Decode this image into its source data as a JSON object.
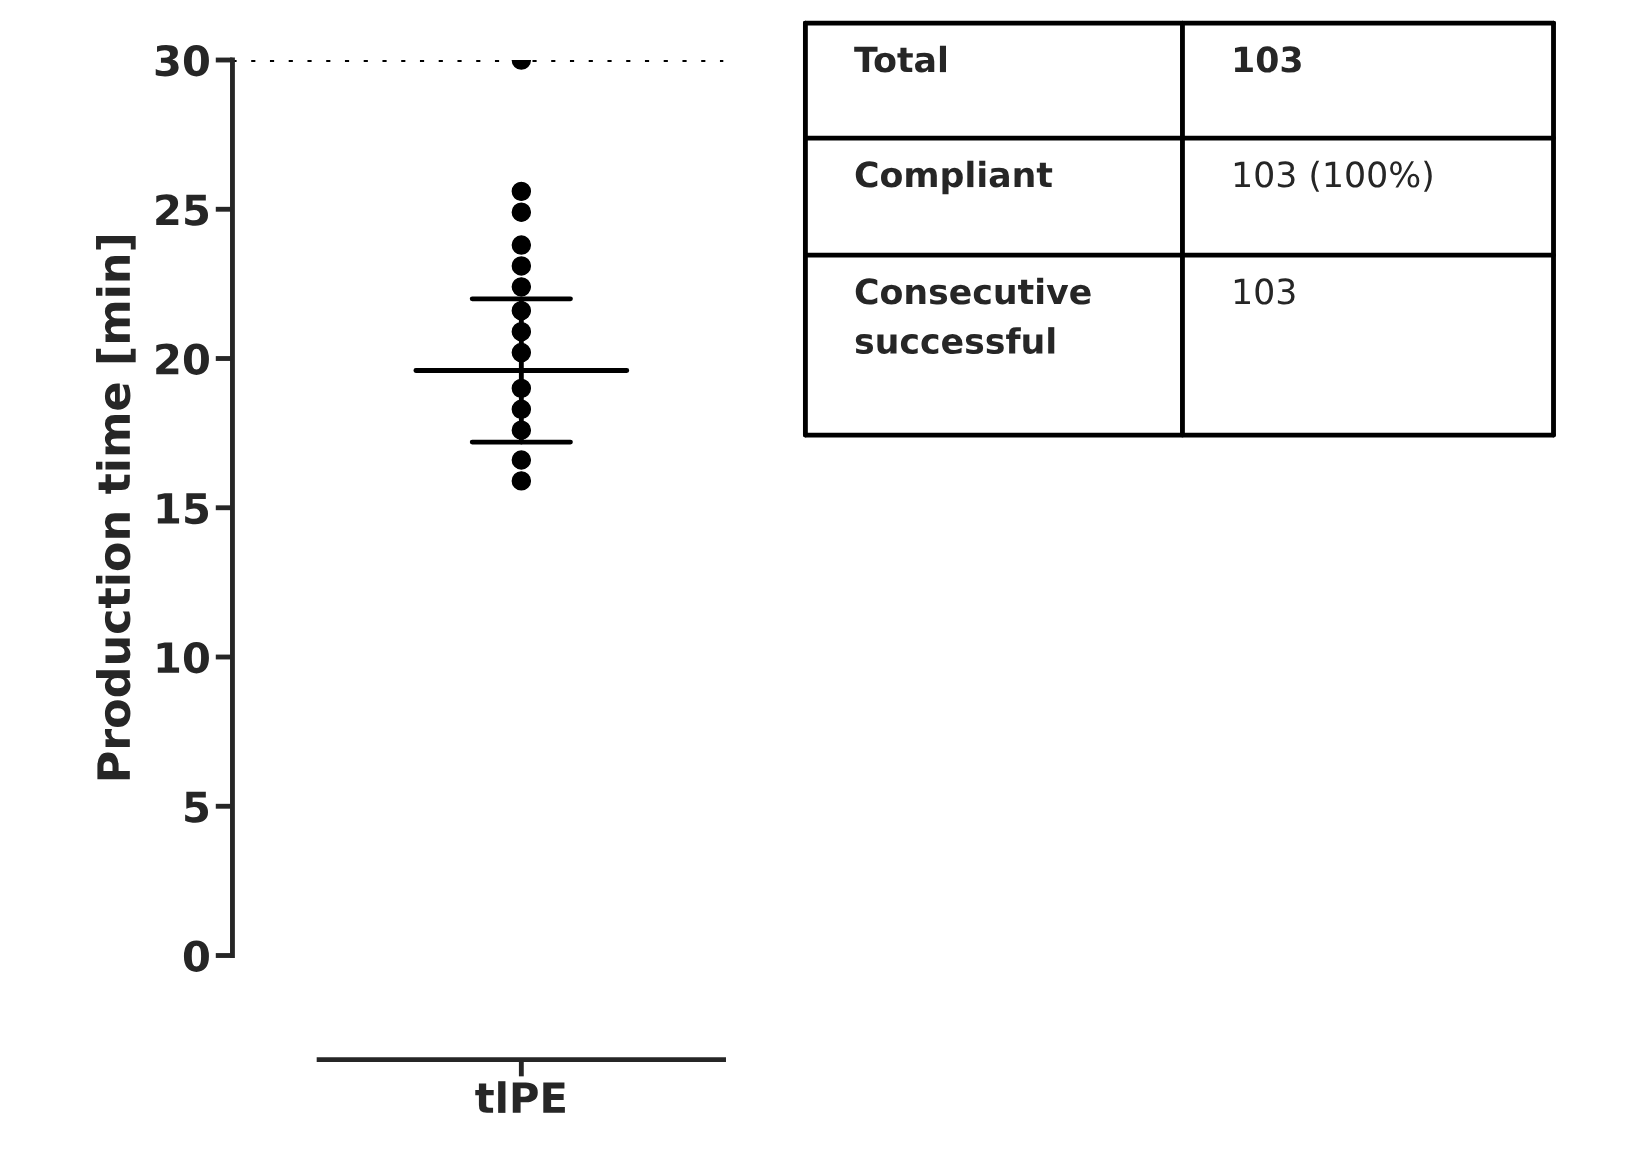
{
  "chart_data": [
    {
      "type": "scatter",
      "ylabel": "Production time [min]",
      "categories": [
        "tlPE"
      ],
      "ylim": [
        0,
        30
      ],
      "yticks": [
        0,
        5,
        10,
        15,
        20,
        25,
        30
      ],
      "grid": false,
      "legend": false,
      "marker": "circle",
      "series": [
        {
          "color": "#000000",
          "x": [
            "tlPE",
            "tlPE",
            "tlPE",
            "tlPE",
            "tlPE",
            "tlPE",
            "tlPE",
            "tlPE",
            "tlPE",
            "tlPE",
            "tlPE",
            "tlPE",
            "tlPE",
            "tlPE"
          ],
          "values": [
            30,
            25.6,
            24.9,
            23.8,
            23.1,
            22.4,
            21.6,
            20.9,
            20.2,
            19.0,
            18.3,
            17.6,
            16.6,
            15.9
          ]
        },
        {
          "type": "box",
          "color": "#000000",
          "boxes": [
            {
              "low": 17.2,
              "q1": 19.6,
              "median": 19.6,
              "q3": 19.6,
              "high": 22.0
            }
          ]
        }
      ],
      "ref_lines": [
        {
          "axis": "y",
          "value": 30,
          "line_style": "dotted",
          "color": "#000000"
        }
      ]
    },
    {
      "type": "other",
      "annotations": [
        "Total",
        "103",
        "Compliant",
        "103 (100%)",
        "Consecutive\nsuccessful",
        "103"
      ]
    }
  ]
}
